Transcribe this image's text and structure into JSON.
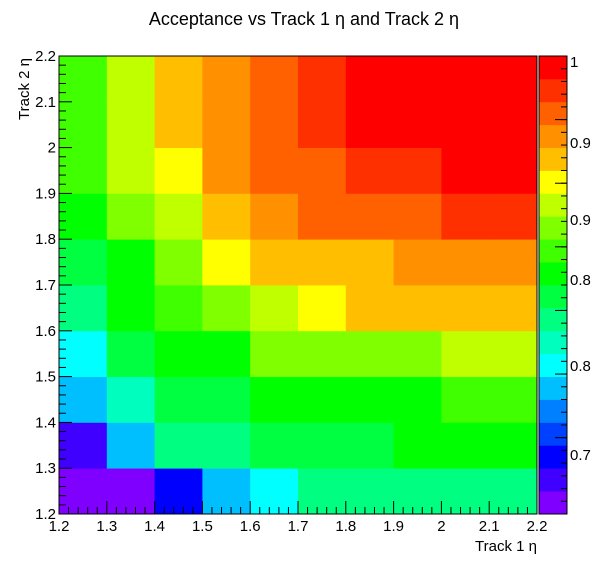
{
  "chart_data": {
    "type": "heatmap",
    "title": "Acceptance vs Track 1 η and Track 2 η",
    "xlabel": "Track 1 η",
    "ylabel": "Track 2 η",
    "x_edges": [
      1.2,
      1.3,
      1.4,
      1.5,
      1.6,
      1.7,
      1.8,
      1.9,
      2.0,
      2.1,
      2.2
    ],
    "y_edges": [
      1.2,
      1.3,
      1.4,
      1.5,
      1.6,
      1.7,
      1.8,
      1.9,
      2.0,
      2.1,
      2.2
    ],
    "xlim": [
      1.2,
      2.2
    ],
    "ylim": [
      1.2,
      2.2
    ],
    "x_ticks": [
      "1.2",
      "1.3",
      "1.4",
      "1.5",
      "1.6",
      "1.7",
      "1.8",
      "1.9",
      "2",
      "2.1",
      "2.2"
    ],
    "y_ticks": [
      "1.2",
      "1.3",
      "1.4",
      "1.5",
      "1.6",
      "1.7",
      "1.8",
      "1.9",
      "2",
      "2.1",
      "2.2"
    ],
    "zlim": [
      0.64,
      1.0
    ],
    "colorbar_ticks": [
      "0.7",
      "0.8",
      "0.8",
      "0.9",
      "0.9",
      "1"
    ],
    "values": [
      [
        0.645,
        0.655,
        0.685,
        0.74,
        0.76,
        0.785,
        0.785,
        0.79,
        0.79,
        0.79
      ],
      [
        0.675,
        0.74,
        0.785,
        0.795,
        0.81,
        0.81,
        0.81,
        0.825,
        0.825,
        0.825
      ],
      [
        0.735,
        0.77,
        0.81,
        0.82,
        0.835,
        0.835,
        0.835,
        0.835,
        0.855,
        0.855
      ],
      [
        0.765,
        0.81,
        0.835,
        0.83,
        0.86,
        0.87,
        0.87,
        0.87,
        0.89,
        0.89
      ],
      [
        0.79,
        0.825,
        0.845,
        0.865,
        0.875,
        0.905,
        0.915,
        0.915,
        0.915,
        0.915
      ],
      [
        0.81,
        0.835,
        0.86,
        0.895,
        0.915,
        0.915,
        0.925,
        0.935,
        0.935,
        0.935
      ],
      [
        0.825,
        0.86,
        0.88,
        0.915,
        0.935,
        0.955,
        0.955,
        0.955,
        0.965,
        0.965
      ],
      [
        0.845,
        0.885,
        0.905,
        0.935,
        0.955,
        0.955,
        0.965,
        0.965,
        0.985,
        0.985
      ],
      [
        0.855,
        0.885,
        0.915,
        0.935,
        0.955,
        0.975,
        0.985,
        0.985,
        0.985,
        0.985
      ],
      [
        0.855,
        0.885,
        0.915,
        0.935,
        0.955,
        0.975,
        0.985,
        0.985,
        0.985,
        0.985
      ]
    ]
  },
  "colors": {
    "palette": [
      "#7f00ff",
      "#4000ff",
      "#0000ff",
      "#0040ff",
      "#0080ff",
      "#00bfff",
      "#00ffff",
      "#00ffbf",
      "#00ff80",
      "#00ff40",
      "#00ff00",
      "#40ff00",
      "#80ff00",
      "#bfff00",
      "#ffff00",
      "#ffbf00",
      "#ff9000",
      "#ff6000",
      "#ff3000",
      "#ff0000"
    ],
    "frame": "#000000",
    "background": "#ffffff"
  }
}
